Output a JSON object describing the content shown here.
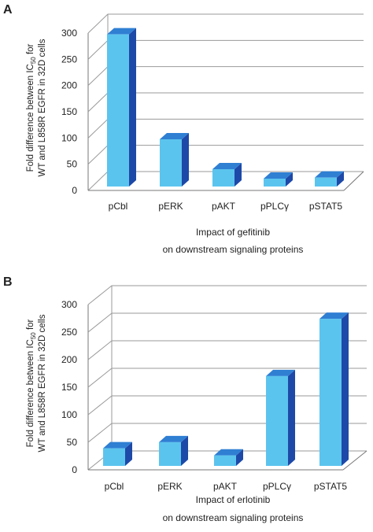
{
  "panels": [
    {
      "panel_label": "A",
      "ylabel_line1": "Fold difference between IC",
      "ylabel_sub": "50",
      "ylabel_line1_end": " for",
      "ylabel_line2": "WT and L858R EGFR in 32D cells",
      "xlabel_line1": "Impact of gefitinib",
      "xlabel_line2": "on downstream signaling proteins",
      "yticks": [
        "0",
        "50",
        "100",
        "150",
        "200",
        "250",
        "300"
      ]
    },
    {
      "panel_label": "B",
      "ylabel_line1": "Fold difference between IC",
      "ylabel_sub": "50",
      "ylabel_line1_end": " for",
      "ylabel_line2": "WT and L858R EGFR in 32D cells",
      "xlabel_line1": "Impact of erlotinib",
      "xlabel_line2": "on downstream signaling proteins",
      "yticks": [
        "0",
        "50",
        "100",
        "150",
        "200",
        "250",
        "300"
      ]
    }
  ],
  "colors": {
    "bar_front": "#5bc4ee",
    "bar_top": "#2f7fd3",
    "bar_side": "#1d49a8",
    "grid": "#9a9a9a",
    "wall": "#777777",
    "text": "#222222"
  },
  "chart_data": [
    {
      "type": "bar",
      "style": "3d-column",
      "categories": [
        "pCbl",
        "pERK",
        "pAKT",
        "pPLCγ",
        "pSTAT5"
      ],
      "values": [
        290,
        90,
        33,
        15,
        17
      ],
      "ylim": [
        0,
        300
      ],
      "grid": true,
      "xlabel": "Impact of gefitinib on downstream signaling proteins",
      "ylabel": "Fold difference between IC50 for WT and L858R EGFR in 32D cells"
    },
    {
      "type": "bar",
      "style": "3d-column",
      "categories": [
        "pCbl",
        "pERK",
        "pAKT",
        "pPLCγ",
        "pSTAT5"
      ],
      "values": [
        32,
        43,
        19,
        163,
        267
      ],
      "ylim": [
        0,
        300
      ],
      "grid": true,
      "xlabel": "Impact of erlotinib on downstream signaling proteins",
      "ylabel": "Fold difference between IC50 for WT and L858R EGFR in 32D cells"
    }
  ]
}
